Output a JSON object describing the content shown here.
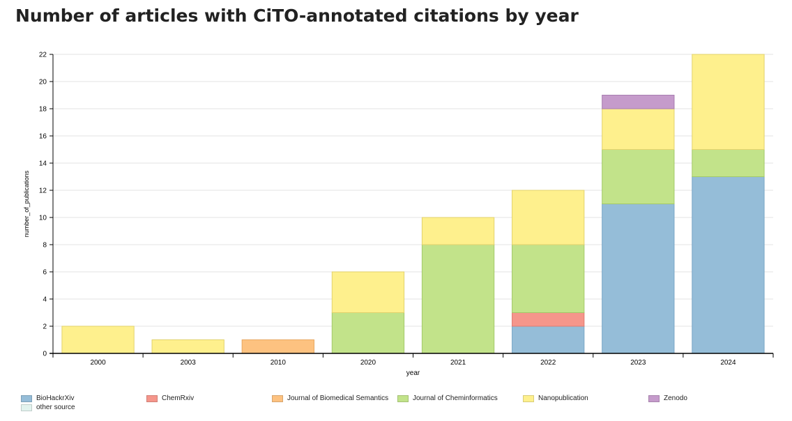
{
  "page": {
    "title": "Number of articles with CiTO-annotated citations by year"
  },
  "chart_data": {
    "type": "bar",
    "stacked": true,
    "categories": [
      "2000",
      "2003",
      "2010",
      "2020",
      "2021",
      "2022",
      "2023",
      "2024"
    ],
    "series": [
      {
        "name": "BioHackrXiv",
        "color": "#95bdd8",
        "stroke": "#7aa7c7",
        "values": [
          0,
          0,
          0,
          0,
          0,
          2,
          11,
          13
        ]
      },
      {
        "name": "ChemRxiv",
        "color": "#f5968b",
        "stroke": "#e07a70",
        "values": [
          0,
          0,
          0,
          0,
          0,
          1,
          0,
          0
        ]
      },
      {
        "name": "Journal of Biomedical Semantics",
        "color": "#fdc280",
        "stroke": "#e8a760",
        "values": [
          0,
          0,
          1,
          0,
          0,
          0,
          0,
          0
        ]
      },
      {
        "name": "Journal of Cheminformatics",
        "color": "#c2e38a",
        "stroke": "#a3c96a",
        "values": [
          0,
          0,
          0,
          3,
          8,
          5,
          4,
          2
        ]
      },
      {
        "name": "Nanopublication",
        "color": "#fef08d",
        "stroke": "#e2d26c",
        "values": [
          2,
          1,
          0,
          3,
          2,
          4,
          3,
          7
        ]
      },
      {
        "name": "Zenodo",
        "color": "#c59bcb",
        "stroke": "#a77db0",
        "values": [
          0,
          0,
          0,
          0,
          0,
          0,
          1,
          0
        ]
      },
      {
        "name": "other source",
        "color": "#e2f3ee",
        "stroke": "#c9e1da",
        "values": [
          0,
          0,
          0,
          0,
          0,
          0,
          0,
          0
        ]
      }
    ],
    "xlabel": "year",
    "ylabel": "number_of_publications",
    "ylim": [
      0,
      22
    ],
    "yticks": [
      0,
      2,
      4,
      6,
      8,
      10,
      12,
      14,
      16,
      18,
      20,
      22
    ],
    "grid": true,
    "legend_position": "bottom"
  }
}
